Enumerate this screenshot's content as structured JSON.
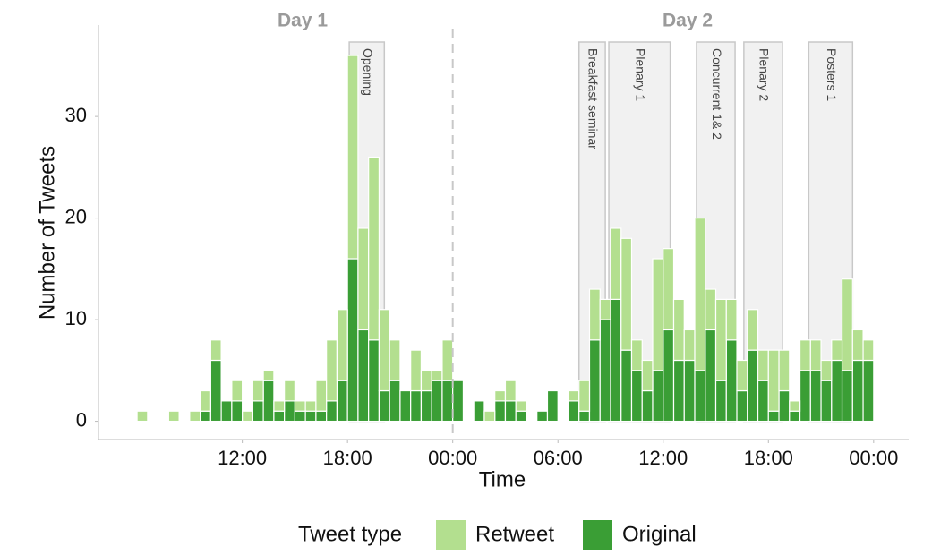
{
  "chart_data": {
    "type": "histogram",
    "stacked": true,
    "x_label": "Time",
    "y_label": "Number of Tweets",
    "legend_title": "Tweet type",
    "legend_position": "bottom",
    "day_labels": [
      "Day 1",
      "Day 2"
    ],
    "divider": 24,
    "sessions": [
      {
        "label": "Opening",
        "start": 18.1,
        "end": 20.1
      },
      {
        "label": "Breakfast seminar",
        "start": 31.2,
        "end": 32.7
      },
      {
        "label": "Plenary 1",
        "start": 32.9,
        "end": 36.4
      },
      {
        "label": "Concurrent 1& 2",
        "start": 37.9,
        "end": 40.1
      },
      {
        "label": "Plenary 2",
        "start": 40.6,
        "end": 42.8
      },
      {
        "label": "Posters 1",
        "start": 44.3,
        "end": 46.8
      }
    ],
    "bins": [
      6,
      6.6,
      7.2,
      7.8,
      8.4,
      9,
      9.6,
      10.2,
      10.8,
      11.4,
      12,
      12.6,
      13.2,
      13.8,
      14.4,
      15,
      15.6,
      16.2,
      16.8,
      17.4,
      18,
      18.6,
      19.2,
      19.8,
      20.4,
      21,
      21.6,
      22.2,
      22.8,
      23.4,
      24,
      24.6,
      25.2,
      25.8,
      26.4,
      27,
      27.6,
      28.2,
      28.8,
      29.4,
      30,
      30.6,
      31.2,
      31.8,
      32.4,
      33,
      33.6,
      34.2,
      34.8,
      35.4,
      36,
      36.6,
      37.2,
      37.8,
      38.4,
      39,
      39.6,
      40.2,
      40.8,
      41.4,
      42,
      42.6,
      43.2,
      43.8,
      44.4,
      45,
      45.6,
      46.2,
      46.8,
      47.4,
      48
    ],
    "series": [
      {
        "name": "Retweet",
        "color": "#b3df8f",
        "values": [
          1,
          0,
          0,
          1,
          0,
          1,
          2,
          2,
          0,
          2,
          1,
          2,
          1,
          1,
          2,
          1,
          1,
          3,
          6,
          7,
          20,
          10,
          18,
          8,
          4,
          0,
          4,
          2,
          1,
          4,
          0,
          0,
          0,
          1,
          1,
          2,
          1,
          0,
          0,
          0,
          0,
          1,
          3,
          5,
          2,
          7,
          11,
          3,
          3,
          11,
          8,
          6,
          3,
          15,
          4,
          8,
          4,
          3,
          4,
          3,
          6,
          4,
          1,
          3,
          3,
          2,
          2,
          9,
          3,
          2
        ]
      },
      {
        "name": "Original",
        "color": "#3a9e35",
        "values": [
          0,
          0,
          0,
          0,
          0,
          0,
          1,
          6,
          2,
          2,
          0,
          2,
          4,
          1,
          2,
          1,
          1,
          1,
          2,
          4,
          16,
          9,
          8,
          3,
          4,
          3,
          3,
          3,
          4,
          4,
          4,
          0,
          2,
          0,
          2,
          2,
          1,
          0,
          1,
          3,
          0,
          2,
          1,
          8,
          10,
          12,
          7,
          5,
          3,
          5,
          9,
          6,
          6,
          5,
          9,
          4,
          8,
          3,
          7,
          4,
          1,
          3,
          1,
          5,
          5,
          4,
          6,
          5,
          6,
          6
        ]
      }
    ],
    "xlim": [
      3.8,
      50
    ],
    "ylim": [
      -1.8,
      39
    ],
    "xticks": [
      {
        "value": 12,
        "label": "12:00"
      },
      {
        "value": 18,
        "label": "18:00"
      },
      {
        "value": 24,
        "label": "00:00"
      },
      {
        "value": 30,
        "label": "06:00"
      },
      {
        "value": 36,
        "label": "12:00"
      },
      {
        "value": 42,
        "label": "18:00"
      },
      {
        "value": 48,
        "label": "00:00"
      }
    ],
    "yticks": [
      0,
      10,
      20,
      30
    ],
    "grid": false
  }
}
